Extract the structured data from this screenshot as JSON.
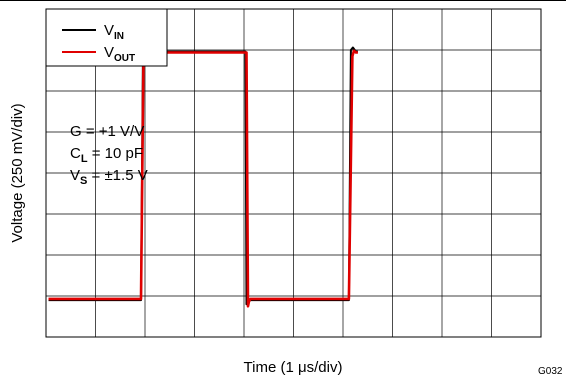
{
  "chart_data": {
    "type": "line",
    "xlabel_main": "Time (1 ",
    "xlabel_mu": "μ",
    "xlabel_rest": "s/div)",
    "ylabel": "Voltage (250 mV/div)",
    "figure_id": "G032",
    "grid": true,
    "x_divisions": 10,
    "y_divisions": 8,
    "xlim": [
      0,
      10
    ],
    "ylim": [
      0,
      8
    ],
    "legend": {
      "position": "top-left",
      "entries": [
        {
          "main": "V",
          "sub": "IN",
          "color": "#000000"
        },
        {
          "main": "V",
          "sub": "OUT",
          "color": "#e00000"
        }
      ]
    },
    "annotations": [
      {
        "main": "G = +1 V/V",
        "sub": "",
        "rest": ""
      },
      {
        "main": "C",
        "sub": "L",
        "rest": " = 10 pF"
      },
      {
        "main": "V",
        "sub": "S",
        "rest": " = ±1.5 V"
      }
    ],
    "series": [
      {
        "name": "V_IN",
        "color": "#000000",
        "x": [
          0.05,
          1.92,
          1.96,
          1.98,
          2.02,
          3.95,
          4.03,
          4.05,
          4.08,
          4.12,
          6.12,
          6.16,
          6.2,
          6.26,
          6.3
        ],
        "y": [
          0.9,
          0.9,
          7.0,
          7.06,
          6.96,
          6.96,
          6.96,
          0.8,
          0.88,
          0.9,
          0.9,
          7.0,
          7.06,
          6.96,
          6.96
        ]
      },
      {
        "name": "V_OUT",
        "color": "#e00000",
        "x": [
          0.05,
          1.92,
          1.97,
          2.0,
          2.02,
          3.98,
          4.05,
          4.08,
          4.1,
          4.13,
          6.12,
          6.19,
          6.22,
          6.26,
          6.3
        ],
        "y": [
          0.93,
          0.93,
          6.85,
          6.98,
          6.94,
          6.94,
          6.94,
          0.75,
          0.86,
          0.93,
          0.93,
          6.85,
          6.98,
          6.94,
          6.94
        ]
      }
    ]
  }
}
